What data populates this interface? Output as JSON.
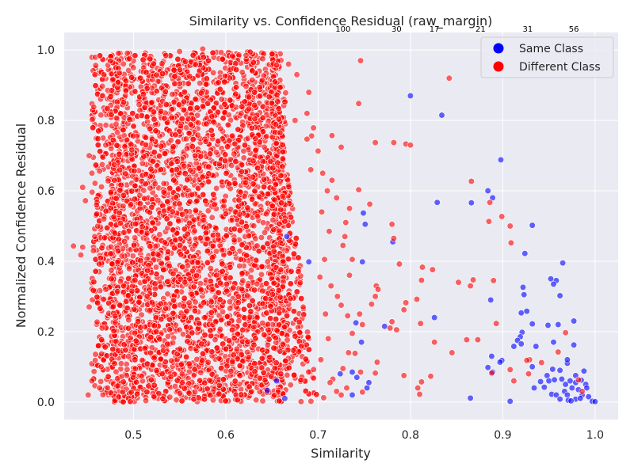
{
  "chart_data": {
    "type": "scatter",
    "title": "Similarity vs. Confidence Residual (raw_margin)",
    "xlabel": "Similarity",
    "ylabel": "Normalized Confidence Residual",
    "xlim": [
      0.425,
      1.025
    ],
    "ylim": [
      -0.05,
      1.05
    ],
    "x_ticks": [
      "0.5",
      "0.6",
      "0.7",
      "0.8",
      "0.9",
      "1.0"
    ],
    "x_tick_values": [
      0.5,
      0.6,
      0.7,
      0.8,
      0.9,
      1.0
    ],
    "y_ticks": [
      "0.0",
      "0.2",
      "0.4",
      "0.6",
      "0.8",
      "1.0"
    ],
    "y_tick_values": [
      0.0,
      0.2,
      0.4,
      0.6,
      0.8,
      1.0
    ],
    "grid": true,
    "legend_position": "upper-right",
    "bin_counts": [
      {
        "label": "100",
        "x": 0.727
      },
      {
        "label": "30",
        "x": 0.785
      },
      {
        "label": "17",
        "x": 0.826
      },
      {
        "label": "21",
        "x": 0.876
      },
      {
        "label": "31",
        "x": 0.927
      },
      {
        "label": "56",
        "x": 0.977
      }
    ],
    "series": [
      {
        "name": "Same Class",
        "color": "#0000ff",
        "points": [
          [
            0.8,
            0.87
          ],
          [
            0.834,
            0.815
          ],
          [
            0.898,
            0.688
          ],
          [
            0.829,
            0.567
          ],
          [
            0.866,
            0.566
          ],
          [
            0.884,
            0.6
          ],
          [
            0.889,
            0.58
          ],
          [
            0.932,
            0.502
          ],
          [
            0.924,
            0.422
          ],
          [
            0.965,
            0.395
          ],
          [
            0.952,
            0.35
          ],
          [
            0.958,
            0.345
          ],
          [
            0.955,
            0.335
          ],
          [
            0.922,
            0.326
          ],
          [
            0.923,
            0.305
          ],
          [
            0.962,
            0.302
          ],
          [
            0.887,
            0.29
          ],
          [
            0.92,
            0.253
          ],
          [
            0.926,
            0.258
          ],
          [
            0.977,
            0.23
          ],
          [
            0.949,
            0.218
          ],
          [
            0.96,
            0.22
          ],
          [
            0.932,
            0.222
          ],
          [
            0.921,
            0.198
          ],
          [
            0.919,
            0.185
          ],
          [
            0.916,
            0.175
          ],
          [
            0.92,
            0.165
          ],
          [
            0.912,
            0.158
          ],
          [
            0.936,
            0.158
          ],
          [
            0.955,
            0.17
          ],
          [
            0.977,
            0.162
          ],
          [
            0.899,
            0.118
          ],
          [
            0.897,
            0.113
          ],
          [
            0.888,
            0.13
          ],
          [
            0.932,
            0.1
          ],
          [
            0.884,
            0.098
          ],
          [
            0.889,
            0.085
          ],
          [
            0.954,
            0.093
          ],
          [
            0.962,
            0.09
          ],
          [
            0.988,
            0.088
          ],
          [
            0.948,
            0.075
          ],
          [
            0.941,
            0.058
          ],
          [
            0.95,
            0.06
          ],
          [
            0.956,
            0.063
          ],
          [
            0.964,
            0.065
          ],
          [
            0.973,
            0.06
          ],
          [
            0.979,
            0.055
          ],
          [
            0.985,
            0.062
          ],
          [
            0.99,
            0.05
          ],
          [
            0.968,
            0.05
          ],
          [
            0.945,
            0.042
          ],
          [
            0.934,
            0.04
          ],
          [
            0.975,
            0.04
          ],
          [
            0.982,
            0.035
          ],
          [
            0.967,
            0.03
          ],
          [
            0.953,
            0.022
          ],
          [
            0.958,
            0.02
          ],
          [
            0.97,
            0.02
          ],
          [
            0.986,
            0.02
          ],
          [
            0.993,
            0.015
          ],
          [
            0.962,
            0.008
          ],
          [
            0.971,
            0.005
          ],
          [
            0.979,
            0.008
          ],
          [
            0.984,
            0.01
          ],
          [
            0.974,
            0.003
          ],
          [
            0.908,
            0.002
          ],
          [
            0.865,
            0.011
          ],
          [
            0.997,
            0.002
          ],
          [
            1.0,
            0.001
          ],
          [
            0.97,
            0.11
          ],
          [
            0.97,
            0.12
          ],
          [
            0.979,
            0.075
          ],
          [
            0.991,
            0.04
          ],
          [
            0.753,
            0.04
          ],
          [
            0.772,
            0.215
          ],
          [
            0.781,
            0.455
          ],
          [
            0.749,
            0.537
          ],
          [
            0.751,
            0.505
          ],
          [
            0.748,
            0.398
          ],
          [
            0.741,
            0.225
          ],
          [
            0.737,
            0.085
          ],
          [
            0.747,
            0.17
          ],
          [
            0.755,
            0.055
          ],
          [
            0.826,
            0.24
          ],
          [
            0.666,
            0.47
          ],
          [
            0.69,
            0.398
          ],
          [
            0.742,
            0.07
          ],
          [
            0.724,
            0.08
          ],
          [
            0.645,
            0.033
          ],
          [
            0.664,
            0.01
          ],
          [
            0.655,
            0.06
          ],
          [
            0.737,
            0.02
          ]
        ]
      },
      {
        "name": "Different Class",
        "color": "#ff0000",
        "points": [
          [
            0.842,
            0.92
          ],
          [
            0.746,
            0.97
          ],
          [
            0.744,
            0.848
          ],
          [
            0.795,
            0.733
          ],
          [
            0.762,
            0.737
          ],
          [
            0.782,
            0.737
          ],
          [
            0.725,
            0.724
          ],
          [
            0.866,
            0.627
          ],
          [
            0.886,
            0.567
          ],
          [
            0.899,
            0.527
          ],
          [
            0.78,
            0.505
          ],
          [
            0.782,
            0.465
          ],
          [
            0.908,
            0.5
          ],
          [
            0.885,
            0.513
          ],
          [
            0.909,
            0.452
          ],
          [
            0.813,
            0.383
          ],
          [
            0.824,
            0.376
          ],
          [
            0.812,
            0.346
          ],
          [
            0.852,
            0.34
          ],
          [
            0.868,
            0.347
          ],
          [
            0.89,
            0.345
          ],
          [
            0.865,
            0.33
          ],
          [
            0.795,
            0.282
          ],
          [
            0.807,
            0.292
          ],
          [
            0.793,
            0.262
          ],
          [
            0.811,
            0.223
          ],
          [
            0.78,
            0.228
          ],
          [
            0.893,
            0.223
          ],
          [
            0.968,
            0.197
          ],
          [
            0.861,
            0.177
          ],
          [
            0.873,
            0.177
          ],
          [
            0.826,
            0.17
          ],
          [
            0.845,
            0.14
          ],
          [
            0.96,
            0.142
          ],
          [
            0.929,
            0.12
          ],
          [
            0.926,
            0.118
          ],
          [
            0.908,
            0.092
          ],
          [
            0.942,
            0.112
          ],
          [
            0.888,
            0.082
          ],
          [
            0.928,
            0.08
          ],
          [
            0.912,
            0.06
          ],
          [
            0.982,
            0.063
          ],
          [
            0.986,
            0.03
          ],
          [
            0.808,
            0.04
          ],
          [
            0.81,
            0.022
          ],
          [
            0.793,
            0.075
          ],
          [
            0.822,
            0.073
          ],
          [
            0.812,
            0.057
          ],
          [
            0.756,
            0.562
          ],
          [
            0.744,
            0.603
          ],
          [
            0.763,
            0.33
          ],
          [
            0.762,
            0.3
          ],
          [
            0.765,
            0.32
          ],
          [
            0.758,
            0.278
          ],
          [
            0.745,
            0.25
          ],
          [
            0.748,
            0.22
          ],
          [
            0.764,
            0.113
          ],
          [
            0.762,
            0.082
          ],
          [
            0.748,
            0.028
          ],
          [
            0.746,
            0.085
          ],
          [
            0.74,
            0.138
          ],
          [
            0.733,
            0.14
          ],
          [
            0.731,
            0.04
          ],
          [
            0.725,
            0.02
          ],
          [
            0.72,
            0.03
          ],
          [
            0.716,
            0.065
          ],
          [
            0.727,
            0.095
          ],
          [
            0.737,
            0.195
          ],
          [
            0.732,
            0.245
          ],
          [
            0.725,
            0.275
          ],
          [
            0.721,
            0.3
          ],
          [
            0.734,
            0.36
          ],
          [
            0.737,
            0.405
          ],
          [
            0.727,
            0.445
          ],
          [
            0.729,
            0.47
          ],
          [
            0.73,
            0.51
          ],
          [
            0.734,
            0.55
          ],
          [
            0.72,
            0.58
          ],
          [
            0.715,
            0.63
          ],
          [
            0.71,
            0.6
          ],
          [
            0.705,
            0.65
          ],
          [
            0.715,
            0.757
          ],
          [
            0.7,
            0.713
          ],
          [
            0.695,
            0.779
          ],
          [
            0.693,
            0.756
          ],
          [
            0.688,
            0.747
          ],
          [
            0.692,
            0.66
          ],
          [
            0.704,
            0.54
          ],
          [
            0.712,
            0.485
          ],
          [
            0.707,
            0.405
          ],
          [
            0.702,
            0.355
          ],
          [
            0.714,
            0.33
          ],
          [
            0.708,
            0.25
          ],
          [
            0.711,
            0.18
          ],
          [
            0.703,
            0.12
          ],
          [
            0.713,
            0.055
          ],
          [
            0.706,
            0.012
          ],
          [
            0.435,
            0.443
          ],
          [
            0.445,
            0.44
          ],
          [
            0.452,
            0.27
          ],
          [
            0.445,
            0.61
          ],
          [
            0.448,
            0.572
          ],
          [
            0.443,
            0.418
          ],
          [
            0.451,
            0.02
          ],
          [
            0.455,
            0.06
          ],
          [
            0.457,
            0.838
          ],
          [
            0.46,
            0.56
          ],
          [
            0.452,
            0.7
          ],
          [
            0.455,
            0.65
          ],
          [
            0.458,
            0.47
          ],
          [
            0.463,
            0.392
          ],
          [
            0.462,
            0.16
          ],
          [
            0.465,
            0.1
          ],
          [
            0.468,
            0.93
          ],
          [
            0.47,
            0.73
          ],
          [
            0.468,
            0.52
          ],
          [
            0.47,
            0.32
          ],
          [
            0.466,
            0.21
          ],
          [
            0.472,
            0.04
          ],
          [
            0.785,
            0.205
          ],
          [
            0.778,
            0.21
          ],
          [
            0.788,
            0.392
          ],
          [
            0.8,
            0.73
          ],
          [
            0.69,
            0.88
          ],
          [
            0.688,
            0.82
          ],
          [
            0.675,
            0.8
          ],
          [
            0.677,
            0.93
          ],
          [
            0.668,
            0.96
          ],
          [
            0.655,
            0.957
          ],
          [
            0.64,
            0.975
          ],
          [
            0.622,
            0.985
          ],
          [
            0.595,
            0.993
          ],
          [
            0.575,
            1.003
          ],
          [
            0.55,
            0.996
          ],
          [
            0.535,
            0.985
          ],
          [
            0.518,
            0.975
          ],
          [
            0.5,
            0.95
          ],
          [
            0.485,
            0.935
          ]
        ]
      }
    ]
  },
  "legend": {
    "items": [
      {
        "label": "Same Class",
        "color": "#0000ff"
      },
      {
        "label": "Different Class",
        "color": "#ff0000"
      }
    ]
  }
}
